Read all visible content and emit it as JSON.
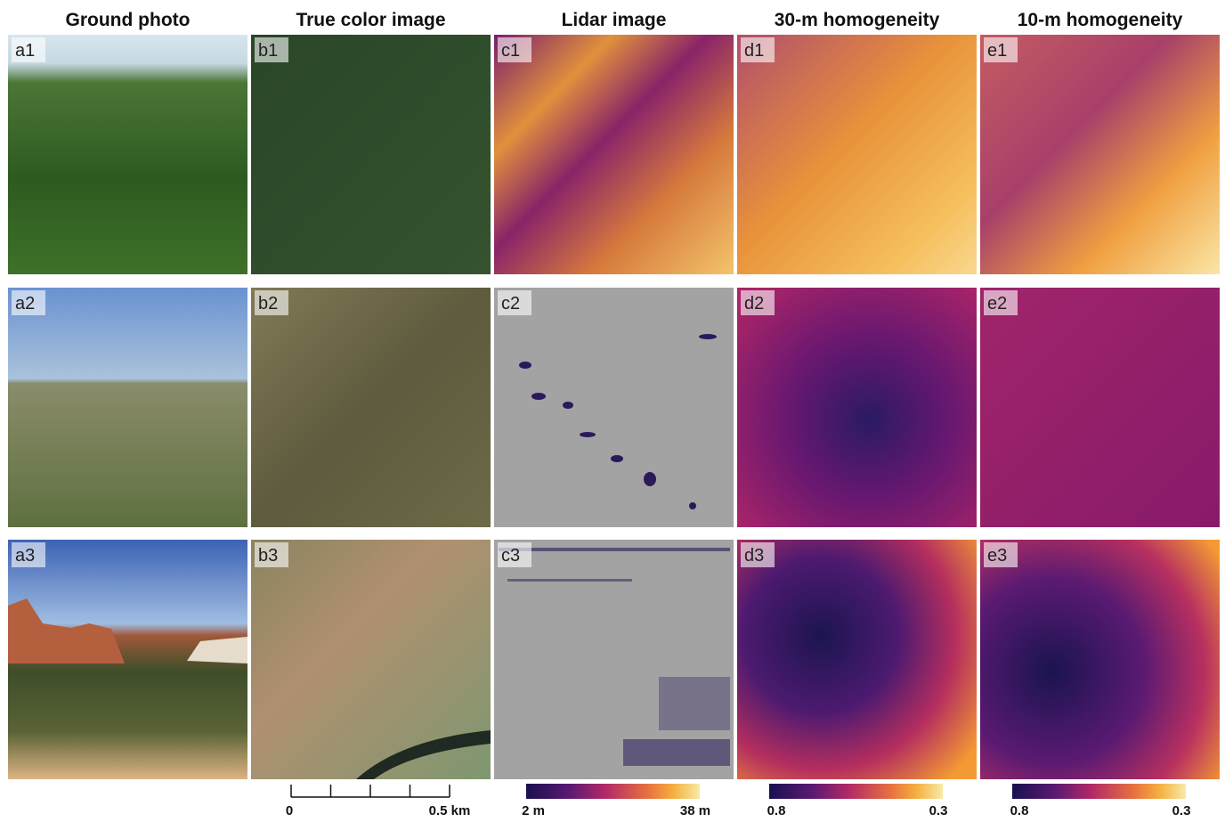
{
  "headers": [
    "Ground photo",
    "True color image",
    "Lidar image",
    "30-m homogeneity",
    "10-m homogeneity"
  ],
  "panels": [
    [
      "a1",
      "b1",
      "c1",
      "d1",
      "e1"
    ],
    [
      "a2",
      "b2",
      "c2",
      "d2",
      "e2"
    ],
    [
      "a3",
      "b3",
      "c3",
      "d3",
      "e3"
    ]
  ],
  "scale_bar": {
    "start": "0",
    "end": "0.5 km"
  },
  "colorbars": [
    {
      "min": "2 m",
      "max": "38 m"
    },
    {
      "min": "0.8",
      "max": "0.3"
    },
    {
      "min": "0.8",
      "max": "0.3"
    }
  ]
}
